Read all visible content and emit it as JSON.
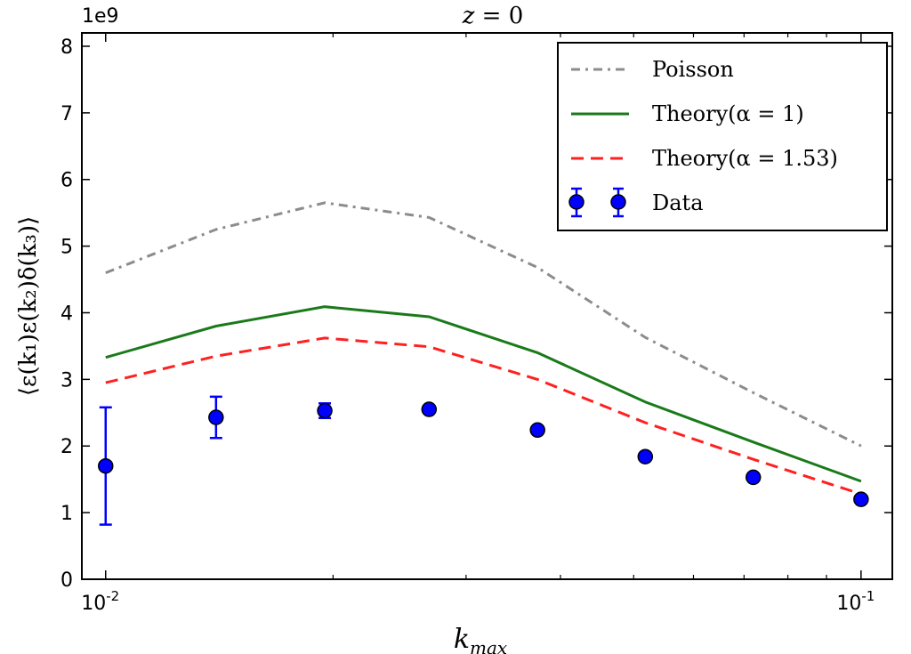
{
  "chart_data": {
    "type": "line",
    "title": "z = 0",
    "xlabel": "k_max",
    "ylabel": "⟨ε(k₁)ε(k₂)δ(k₃)⟩",
    "offset_label": "1e9",
    "x_scale": "log",
    "xlim": [
      0.0093,
      0.11
    ],
    "ylim": [
      0,
      8.2
    ],
    "x_ticks": [
      {
        "value": 0.01,
        "base": "10",
        "exp": "-2"
      },
      {
        "value": 0.1,
        "base": "10",
        "exp": "-1"
      }
    ],
    "y_ticks": [
      0,
      1,
      2,
      3,
      4,
      5,
      6,
      7,
      8
    ],
    "legend_position": "top-right",
    "grid": false,
    "series": [
      {
        "name": "Poisson",
        "style": "dashdot",
        "color": "#8c8c8c",
        "x": [
          0.01,
          0.014,
          0.0195,
          0.0268,
          0.0373,
          0.0518,
          0.072,
          0.1
        ],
        "y": [
          4.6,
          5.25,
          5.65,
          5.43,
          4.68,
          3.63,
          2.8,
          2.0
        ]
      },
      {
        "name": "Theory(α = 1)",
        "style": "solid",
        "color": "#1a7a1a",
        "x": [
          0.01,
          0.014,
          0.0195,
          0.0268,
          0.0373,
          0.0518,
          0.072,
          0.1
        ],
        "y": [
          3.33,
          3.8,
          4.09,
          3.94,
          3.4,
          2.66,
          2.06,
          1.47
        ]
      },
      {
        "name": "Theory(α = 1.53)",
        "style": "dashed",
        "color": "#ff2020",
        "x": [
          0.01,
          0.014,
          0.0195,
          0.0268,
          0.0373,
          0.0518,
          0.072,
          0.1
        ],
        "y": [
          2.95,
          3.35,
          3.62,
          3.49,
          3.0,
          2.35,
          1.8,
          1.28
        ]
      },
      {
        "name": "Data",
        "style": "errorbar",
        "color": "#0000ff",
        "x": [
          0.01,
          0.014,
          0.0195,
          0.0268,
          0.0373,
          0.0518,
          0.072,
          0.1
        ],
        "y": [
          1.7,
          2.43,
          2.53,
          2.55,
          2.24,
          1.84,
          1.53,
          1.2
        ],
        "yerr": [
          0.88,
          0.31,
          0.11,
          0.05,
          0.04,
          0.03,
          0.03,
          0.03
        ]
      }
    ]
  }
}
